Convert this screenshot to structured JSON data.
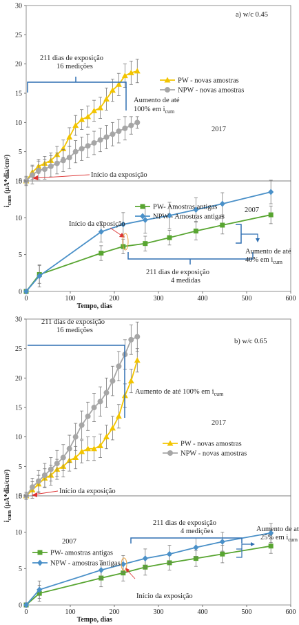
{
  "chart_data": [
    {
      "type": "line",
      "panel_label": "a) w/c 0.45",
      "ylabel": "i_cum (µA*dia/cm²)",
      "ylim": [
        0,
        30
      ],
      "yticks": [
        0,
        5,
        10,
        15,
        20,
        25,
        30
      ],
      "xlim": [
        0,
        600
      ],
      "legend_position": "right",
      "year_label": "2017",
      "annotations": {
        "bracket_line1": "211 dias de exposição",
        "bracket_line2": "16 medições",
        "increase_line1": "Aumento de até",
        "increase_line2": "100% em i",
        "increase_sub": "cum",
        "start": "Início da exposição"
      },
      "series": [
        {
          "name": "PW -   novas amostras",
          "color": "#f2c400",
          "marker": "triangle",
          "x": [
            0,
            14,
            28,
            42,
            56,
            70,
            84,
            98,
            112,
            126,
            140,
            154,
            168,
            182,
            196,
            210,
            224,
            238,
            252
          ],
          "y": [
            0,
            1.5,
            2.5,
            3.0,
            3.5,
            4.5,
            5.5,
            7.5,
            9.5,
            10.5,
            11.0,
            12.0,
            12.5,
            14.0,
            15.5,
            16.5,
            18.0,
            18.5,
            18.8
          ],
          "err": [
            0.8,
            1.2,
            1.2,
            1.2,
            1.3,
            1.4,
            1.5,
            1.6,
            1.7,
            1.7,
            1.8,
            1.8,
            1.8,
            1.9,
            1.9,
            1.9,
            2.0,
            2.0,
            2.0
          ]
        },
        {
          "name": "NPW - novas amostras",
          "color": "#a6a6a6",
          "marker": "circle",
          "x": [
            0,
            14,
            28,
            42,
            56,
            70,
            84,
            98,
            112,
            126,
            140,
            154,
            168,
            182,
            196,
            210,
            224,
            238,
            252
          ],
          "y": [
            0,
            1.0,
            1.8,
            2.0,
            2.5,
            3.0,
            3.5,
            4.0,
            5.0,
            5.5,
            6.0,
            6.5,
            7.0,
            7.5,
            8.0,
            8.5,
            9.0,
            9.5,
            10.0
          ],
          "err": [
            0.6,
            1.5,
            1.6,
            1.7,
            1.8,
            1.8,
            1.9,
            1.9,
            1.9,
            2.0,
            2.0,
            2.0,
            2.0,
            2.0,
            2.0,
            2.0,
            2.0,
            1.5,
            1.0
          ]
        }
      ]
    },
    {
      "type": "line",
      "ylim": [
        0,
        15
      ],
      "yticks": [
        0,
        5,
        10,
        15
      ],
      "xlim": [
        0,
        600
      ],
      "xticks": [
        0,
        100,
        200,
        300,
        400,
        500,
        600
      ],
      "xlabel": "Tempo, dias",
      "legend_position": "top",
      "year_label": "2007",
      "annotations": {
        "start": "Início da exposição",
        "bracket_line1": "211 dias de exposição",
        "bracket_line2": "4 medidas",
        "increase_line1": "Aumento de até",
        "increase_line2": "40% em i",
        "increase_sub": "cum"
      },
      "series": [
        {
          "name": "PW-    Amostras antigas",
          "color": "#58a531",
          "marker": "square",
          "x": [
            0,
            30,
            170,
            220,
            270,
            325,
            385,
            445,
            555
          ],
          "y": [
            0,
            2.3,
            5.2,
            6.1,
            6.5,
            7.3,
            8.2,
            9.0,
            10.4
          ],
          "err": [
            0.3,
            1.2,
            1.0,
            1.0,
            1.0,
            1.0,
            1.2,
            1.2,
            1.2
          ]
        },
        {
          "name": "NPW -   Amostras antigas",
          "color": "#4a90c8",
          "marker": "diamond",
          "x": [
            0,
            30,
            170,
            220,
            270,
            325,
            385,
            445,
            555
          ],
          "y": [
            0,
            2.1,
            8.1,
            9.1,
            9.7,
            10.3,
            11.1,
            11.9,
            13.5
          ],
          "err": [
            0.3,
            1.5,
            1.4,
            1.6,
            1.8,
            1.8,
            1.6,
            1.5,
            1.6
          ]
        }
      ]
    },
    {
      "type": "line",
      "panel_label": "b)  w/c 0.65",
      "ylabel": "i_cum (µA*dia/cm²)",
      "ylim": [
        0,
        30
      ],
      "yticks": [
        0,
        5,
        10,
        15,
        20,
        25,
        30
      ],
      "xlim": [
        0,
        600
      ],
      "legend_position": "right",
      "year_label": "2017",
      "annotations": {
        "bracket_line1": "211 dias de exposição",
        "bracket_line2": "16 medições",
        "increase_line1": "Aumento de até 100% em i",
        "increase_sub": "cum",
        "start": "Início da exposição"
      },
      "series": [
        {
          "name": "PW -     novas amostras",
          "color": "#f2c400",
          "marker": "triangle",
          "x": [
            0,
            14,
            28,
            42,
            56,
            70,
            84,
            98,
            112,
            126,
            140,
            154,
            168,
            182,
            196,
            210,
            224,
            238,
            252
          ],
          "y": [
            0,
            1.0,
            2.0,
            3.0,
            3.5,
            4.5,
            5.0,
            6.0,
            6.5,
            7.5,
            8.0,
            8.0,
            8.5,
            10.0,
            11.5,
            13.5,
            17.0,
            19.5,
            23.0
          ],
          "err": [
            0.6,
            1.4,
            1.5,
            1.6,
            1.7,
            1.7,
            1.8,
            1.8,
            1.9,
            1.9,
            2.0,
            2.0,
            2.0,
            2.0,
            2.0,
            2.0,
            2.0,
            2.0,
            2.0
          ]
        },
        {
          "name": "NPW -  novas amostras",
          "color": "#a6a6a6",
          "marker": "circle",
          "x": [
            0,
            14,
            28,
            42,
            56,
            70,
            84,
            98,
            112,
            126,
            140,
            154,
            168,
            182,
            196,
            210,
            224,
            238,
            252
          ],
          "y": [
            0,
            1.5,
            2.5,
            3.5,
            4.5,
            5.5,
            6.5,
            8.0,
            10.0,
            12.0,
            13.5,
            15.0,
            16.0,
            17.5,
            19.5,
            22.0,
            24.0,
            26.5,
            27.0
          ],
          "err": [
            0.6,
            1.5,
            1.8,
            2.0,
            2.0,
            2.2,
            2.2,
            2.3,
            2.3,
            2.4,
            2.4,
            2.4,
            2.5,
            2.5,
            2.5,
            2.5,
            2.5,
            2.5,
            2.5
          ]
        }
      ]
    },
    {
      "type": "line",
      "ylim": [
        0,
        15
      ],
      "yticks": [
        0,
        5,
        10,
        15
      ],
      "xlim": [
        0,
        600
      ],
      "xticks": [
        0,
        100,
        200,
        300,
        400,
        500,
        600
      ],
      "xlabel": "Tempo, dias",
      "legend_position": "left",
      "year_label": "2007",
      "annotations": {
        "bracket_line1": "211 dias de exposição",
        "bracket_line2": "4 medições",
        "increase_line1": "Aumento de até",
        "increase_line2": "25% em i",
        "increase_sub": "cum",
        "start": "Início da exposição"
      },
      "series": [
        {
          "name": "PW-  amostras antigas",
          "color": "#58a531",
          "marker": "square",
          "x": [
            0,
            30,
            170,
            220,
            270,
            325,
            385,
            445,
            555
          ],
          "y": [
            0,
            1.6,
            3.7,
            4.4,
            5.2,
            5.8,
            6.4,
            7.0,
            8.1
          ],
          "err": [
            0.3,
            1.1,
            1.2,
            1.1,
            1.1,
            1.0,
            1.1,
            1.2,
            1.0
          ]
        },
        {
          "name": "NPW -   amostras antigas",
          "color": "#4a90c8",
          "marker": "diamond",
          "x": [
            0,
            30,
            170,
            220,
            270,
            325,
            385,
            445,
            555
          ],
          "y": [
            0,
            2.1,
            4.8,
            5.6,
            6.4,
            7.0,
            7.9,
            8.7,
            9.9
          ],
          "err": [
            0.3,
            1.2,
            1.3,
            1.2,
            1.3,
            1.2,
            1.3,
            1.3,
            1.3
          ]
        }
      ]
    }
  ]
}
